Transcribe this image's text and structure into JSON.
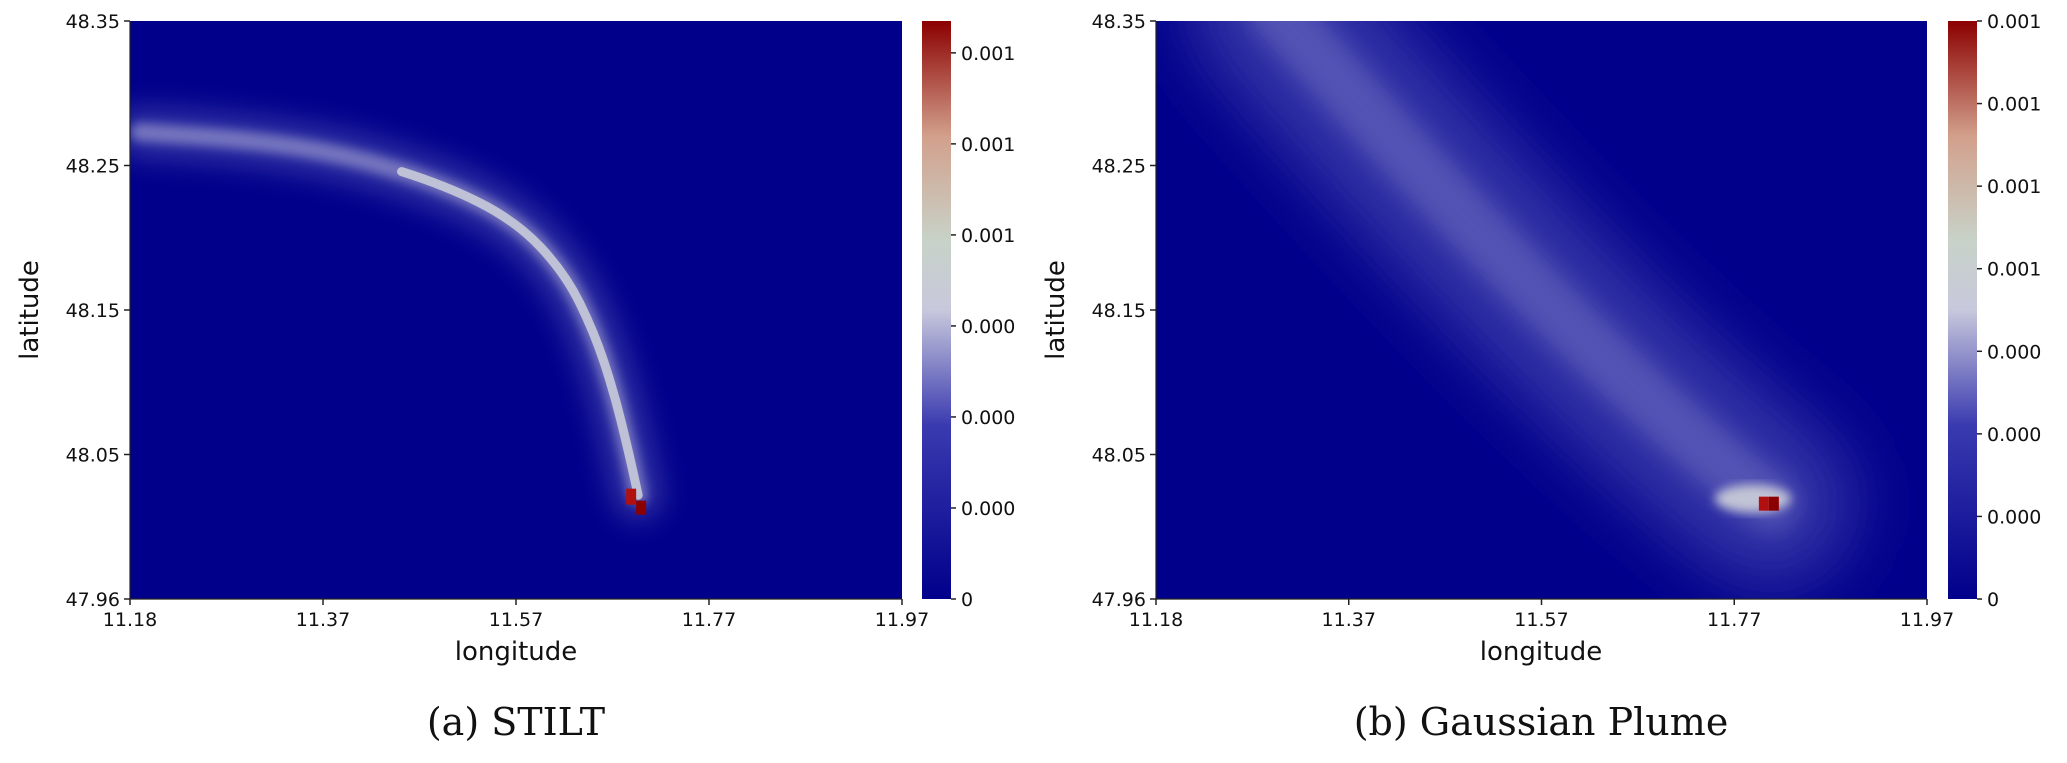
{
  "chart_data": [
    {
      "type": "heatmap",
      "caption": "(a) STILT",
      "title": "",
      "xlabel": "longitude",
      "ylabel": "latitude",
      "xlim": [
        11.18,
        11.97
      ],
      "ylim": [
        47.96,
        48.35
      ],
      "xticks": [
        "11.18",
        "11.37",
        "11.57",
        "11.77",
        "11.97"
      ],
      "yticks": [
        "48.35",
        "48.25",
        "48.15",
        "48.05",
        "47.96"
      ],
      "grid": false,
      "colorbar": {
        "range": [
          0,
          0.0012
        ],
        "ticks": [
          "0.001",
          "0.001",
          "0.001",
          "0.000",
          "0.000",
          "0.000",
          "0"
        ],
        "colors": [
          "#00008b",
          "#3a3ab0",
          "#c8c8dc",
          "#c8d2c8",
          "#d2a08c",
          "#8b0000"
        ]
      },
      "features": {
        "source": {
          "lon": 11.7,
          "lat": 48.025
        },
        "plume_path": [
          [
            11.7,
            48.03
          ],
          [
            11.69,
            48.06
          ],
          [
            11.675,
            48.1
          ],
          [
            11.655,
            48.14
          ],
          [
            11.625,
            48.18
          ],
          [
            11.575,
            48.215
          ],
          [
            11.5,
            48.24
          ],
          [
            11.4,
            48.26
          ],
          [
            11.3,
            48.27
          ],
          [
            11.19,
            48.275
          ]
        ]
      }
    },
    {
      "type": "heatmap",
      "caption": "(b) Gaussian Plume",
      "title": "",
      "xlabel": "longitude",
      "ylabel": "latitude",
      "xlim": [
        11.18,
        11.97
      ],
      "ylim": [
        47.96,
        48.35
      ],
      "xticks": [
        "11.18",
        "11.37",
        "11.57",
        "11.77",
        "11.97"
      ],
      "yticks": [
        "48.35",
        "48.25",
        "48.15",
        "48.05",
        "47.96"
      ],
      "grid": false,
      "colorbar": {
        "range": [
          0,
          0.0012
        ],
        "ticks": [
          "0.001",
          "0.001",
          "0.001",
          "0.001",
          "0.000",
          "0.000",
          "0.000",
          "0"
        ],
        "colors": [
          "#00008b",
          "#3a3ab0",
          "#c8c8dc",
          "#c8d2c8",
          "#d2a08c",
          "#8b0000"
        ]
      },
      "features": {
        "source": {
          "lon": 11.81,
          "lat": 48.025
        },
        "plume_axis": [
          [
            11.81,
            48.025
          ],
          [
            11.3,
            48.36
          ]
        ]
      }
    }
  ]
}
